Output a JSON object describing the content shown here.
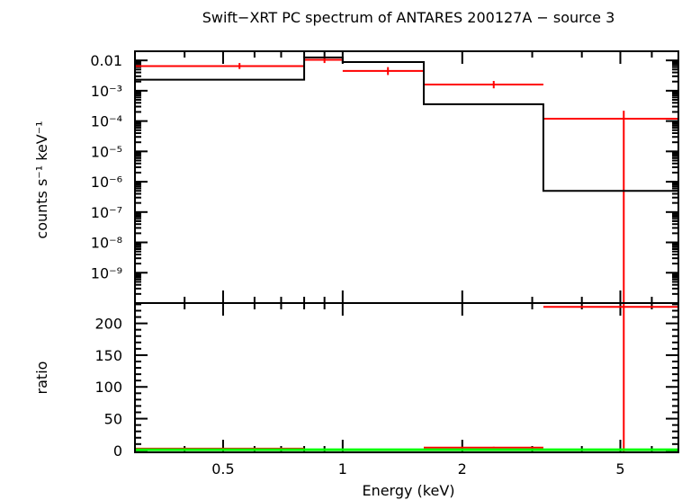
{
  "chart_data": [
    {
      "type": "step",
      "title": "Swift−XRT PC spectrum of ANTARES 200127A − source 3",
      "ylabel": "counts s⁻¹ keV⁻¹",
      "xlabel": "",
      "xscale": "log",
      "yscale": "log",
      "xlim": [
        0.3,
        7.0
      ],
      "ylim": [
        1e-10,
        0.02
      ],
      "ytick_labels": [
        "0.01",
        "10⁻³",
        "10⁻⁴",
        "10⁻⁵",
        "10⁻⁶",
        "10⁻⁷",
        "10⁻⁸",
        "10⁻⁹"
      ],
      "ytick_values": [
        0.01,
        0.001,
        0.0001,
        1e-05,
        1e-06,
        1e-07,
        1e-08,
        1e-09
      ],
      "series": [
        {
          "color": "#ff0000",
          "kind": "data",
          "bins": [
            {
              "xlo": 0.3,
              "xhi": 0.8,
              "x": 0.55,
              "y": 0.0065,
              "ylo": 0.0052,
              "yhi": 0.0082
            },
            {
              "xlo": 0.8,
              "xhi": 1.0,
              "x": 0.9,
              "y": 0.0105,
              "ylo": 0.0082,
              "yhi": 0.0135
            },
            {
              "xlo": 1.0,
              "xhi": 1.6,
              "x": 1.3,
              "y": 0.0045,
              "ylo": 0.0033,
              "yhi": 0.006
            },
            {
              "xlo": 1.6,
              "xhi": 3.2,
              "x": 2.4,
              "y": 0.0016,
              "ylo": 0.0012,
              "yhi": 0.0021
            },
            {
              "xlo": 3.2,
              "xhi": 7.0,
              "x": 5.1,
              "y": 0.00012,
              "ylo": 1e-10,
              "yhi": 0.00022
            }
          ]
        },
        {
          "color": "#000000",
          "kind": "model",
          "bins": [
            {
              "xlo": 0.3,
              "xhi": 0.8,
              "y": 0.0023
            },
            {
              "xlo": 0.8,
              "xhi": 1.0,
              "y": 0.0125
            },
            {
              "xlo": 1.0,
              "xhi": 1.6,
              "y": 0.0088
            },
            {
              "xlo": 1.6,
              "xhi": 3.2,
              "y": 0.00036
            },
            {
              "xlo": 3.2,
              "xhi": 7.0,
              "y": 5e-07
            }
          ]
        }
      ]
    },
    {
      "type": "step",
      "title": "",
      "ylabel": "ratio",
      "xlabel": "Energy (keV)",
      "xscale": "log",
      "yscale": "linear",
      "xlim": [
        0.3,
        7.0
      ],
      "ylim": [
        -3,
        232
      ],
      "ytick_labels": [
        "0",
        "50",
        "100",
        "150",
        "200"
      ],
      "ytick_values": [
        0,
        50,
        100,
        150,
        200
      ],
      "xtick_labels": [
        "0.5",
        "1",
        "2",
        "5"
      ],
      "xtick_values": [
        0.5,
        1,
        2,
        5
      ],
      "series": [
        {
          "color": "#ff0000",
          "kind": "data",
          "bins": [
            {
              "xlo": 0.3,
              "xhi": 0.8,
              "x": 0.55,
              "y": 2.8,
              "ylo": 2.3,
              "yhi": 3.4
            },
            {
              "xlo": 0.8,
              "xhi": 1.0,
              "x": 0.9,
              "y": 0.85,
              "ylo": 0.7,
              "yhi": 1.05
            },
            {
              "xlo": 1.0,
              "xhi": 1.6,
              "x": 1.3,
              "y": 0.5,
              "ylo": 0.38,
              "yhi": 0.68
            },
            {
              "xlo": 1.6,
              "xhi": 3.2,
              "x": 2.4,
              "y": 4.4,
              "ylo": 3.4,
              "yhi": 5.8
            },
            {
              "xlo": 3.2,
              "xhi": 7.0,
              "x": 5.1,
              "y": 226,
              "ylo": -3,
              "yhi": 232
            }
          ]
        },
        {
          "color": "#00ff00",
          "kind": "reference",
          "y": 1
        }
      ]
    }
  ]
}
